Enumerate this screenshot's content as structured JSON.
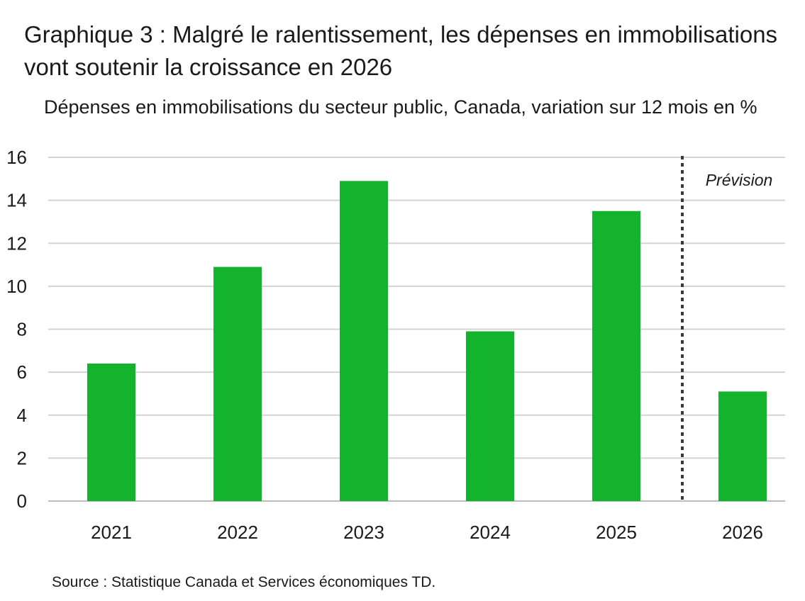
{
  "title": "Graphique 3 : Malgré le ralentissement, les dépenses en immobilisations vont soutenir la croissance en 2026",
  "subtitle": "Dépenses en immobilisations du secteur public, Canada, variation sur 12 mois en %",
  "source": "Source : Statistique Canada et Services économiques TD.",
  "chart_data": {
    "type": "bar",
    "categories": [
      "2021",
      "2022",
      "2023",
      "2024",
      "2025",
      "2026"
    ],
    "values": [
      6.4,
      10.9,
      14.9,
      7.9,
      13.5,
      5.1
    ],
    "ylim": [
      0,
      16
    ],
    "yticks": [
      "0",
      "2",
      "4",
      "6",
      "8",
      "10",
      "12",
      "14",
      "16"
    ],
    "grid": true,
    "bar_color": "#14b32e",
    "annotations": [
      {
        "text": "Prévision",
        "after_category": "2025",
        "style": "dotted-vertical-line"
      }
    ]
  }
}
